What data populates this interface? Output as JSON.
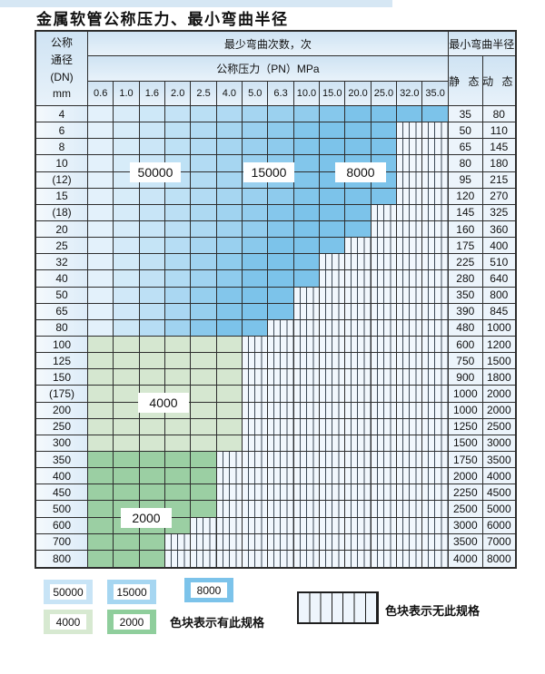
{
  "page": {
    "title": "金属软管公称压力、最小弯曲半径"
  },
  "table": {
    "header": {
      "dn_label_lines": [
        "公称",
        "通径",
        "(DN)",
        "mm"
      ],
      "bend_cycles_label": "最少弯曲次数，次",
      "pressure_label": "公称压力（PN）MPa",
      "radius_label": "最小弯曲半径",
      "static_label": "静 态",
      "dynamic_label": "动 态",
      "pressure_columns": [
        "0.6",
        "1.0",
        "1.6",
        "2.0",
        "2.5",
        "4.0",
        "5.0",
        "6.3",
        "10.0",
        "15.0",
        "20.0",
        "25.0",
        "32.0",
        "35.0"
      ]
    },
    "rows": [
      {
        "dn": "4",
        "colored": 14,
        "zone": "blue",
        "static": "35",
        "dynamic": "80"
      },
      {
        "dn": "6",
        "colored": 12,
        "zone": "blue",
        "static": "50",
        "dynamic": "110"
      },
      {
        "dn": "8",
        "colored": 12,
        "zone": "blue",
        "static": "65",
        "dynamic": "145"
      },
      {
        "dn": "10",
        "colored": 12,
        "zone": "blue",
        "static": "80",
        "dynamic": "180"
      },
      {
        "dn": "(12)",
        "colored": 12,
        "zone": "blue",
        "static": "95",
        "dynamic": "215"
      },
      {
        "dn": "15",
        "colored": 12,
        "zone": "blue",
        "static": "120",
        "dynamic": "270"
      },
      {
        "dn": "(18)",
        "colored": 11,
        "zone": "blue",
        "static": "145",
        "dynamic": "325"
      },
      {
        "dn": "20",
        "colored": 11,
        "zone": "blue",
        "static": "160",
        "dynamic": "360"
      },
      {
        "dn": "25",
        "colored": 10,
        "zone": "blue",
        "static": "175",
        "dynamic": "400"
      },
      {
        "dn": "32",
        "colored": 9,
        "zone": "blue",
        "static": "225",
        "dynamic": "510"
      },
      {
        "dn": "40",
        "colored": 9,
        "zone": "blue",
        "static": "280",
        "dynamic": "640"
      },
      {
        "dn": "50",
        "colored": 8,
        "zone": "blue",
        "static": "350",
        "dynamic": "800"
      },
      {
        "dn": "65",
        "colored": 8,
        "zone": "blue",
        "static": "390",
        "dynamic": "845"
      },
      {
        "dn": "80",
        "colored": 7,
        "zone": "blue",
        "static": "480",
        "dynamic": "1000"
      },
      {
        "dn": "100",
        "colored": 6,
        "zone": "green-light",
        "static": "600",
        "dynamic": "1200"
      },
      {
        "dn": "125",
        "colored": 6,
        "zone": "green-light",
        "static": "750",
        "dynamic": "1500"
      },
      {
        "dn": "150",
        "colored": 6,
        "zone": "green-light",
        "static": "900",
        "dynamic": "1800"
      },
      {
        "dn": "(175)",
        "colored": 6,
        "zone": "green-light",
        "static": "1000",
        "dynamic": "2000"
      },
      {
        "dn": "200",
        "colored": 6,
        "zone": "green-light",
        "static": "1000",
        "dynamic": "2000"
      },
      {
        "dn": "250",
        "colored": 6,
        "zone": "green-light",
        "static": "1250",
        "dynamic": "2500"
      },
      {
        "dn": "300",
        "colored": 6,
        "zone": "green-light",
        "static": "1500",
        "dynamic": "3000"
      },
      {
        "dn": "350",
        "colored": 5,
        "zone": "green-dark",
        "static": "1750",
        "dynamic": "3500"
      },
      {
        "dn": "400",
        "colored": 5,
        "zone": "green-dark",
        "static": "2000",
        "dynamic": "4000"
      },
      {
        "dn": "450",
        "colored": 5,
        "zone": "green-dark",
        "static": "2250",
        "dynamic": "4500"
      },
      {
        "dn": "500",
        "colored": 5,
        "zone": "green-dark",
        "static": "2500",
        "dynamic": "5000"
      },
      {
        "dn": "600",
        "colored": 4,
        "zone": "green-dark",
        "static": "3000",
        "dynamic": "6000"
      },
      {
        "dn": "700",
        "colored": 3,
        "zone": "green-dark",
        "static": "3500",
        "dynamic": "7000"
      },
      {
        "dn": "800",
        "colored": 3,
        "zone": "green-dark",
        "static": "4000",
        "dynamic": "8000"
      }
    ],
    "overlays": [
      "50000",
      "15000",
      "8000",
      "4000",
      "2000"
    ]
  },
  "legend": {
    "swatches": [
      {
        "label": "50000",
        "color": "#c8e4f6"
      },
      {
        "label": "15000",
        "color": "#a6d6f1"
      },
      {
        "label": "8000",
        "color": "#7cc3ea"
      },
      {
        "label": "4000",
        "color": "#d7e9d1"
      },
      {
        "label": "2000",
        "color": "#8fce9c"
      }
    ],
    "has_spec_text": "色块表示有此规格",
    "no_spec_text": "色块表示无此规格"
  },
  "colors": {
    "blue_light_start": "#e3f1fb",
    "blue_dark": "#7cc3ea",
    "green_light": "#d5e7d0",
    "green_dark": "#9bcfa3",
    "header_bg": "#d9e9f6",
    "hatch_bg": "#f1f7fd",
    "grid_line": "#2d2d2d"
  }
}
